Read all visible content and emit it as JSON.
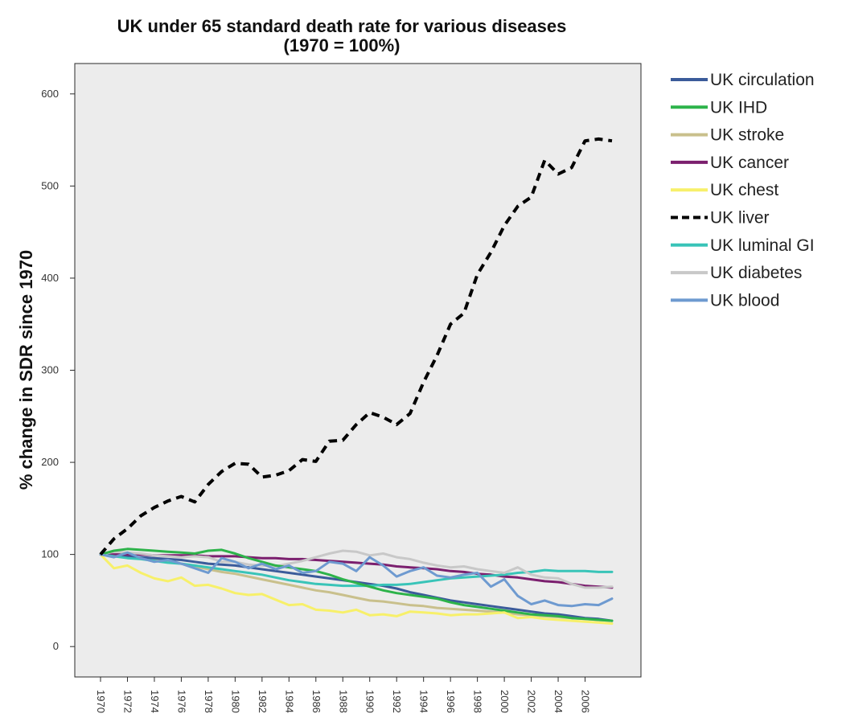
{
  "chart_data": {
    "type": "line",
    "title": "UK under 65 standard death rate for various diseases",
    "subtitle": "(1970 = 100%)",
    "xlabel": "",
    "ylabel": "% change in SDR since 1970",
    "ylim": [
      -33,
      633
    ],
    "yticks": [
      0,
      100,
      200,
      300,
      400,
      500,
      600
    ],
    "grid": false,
    "legend_position": "right",
    "x": [
      1970,
      1971,
      1972,
      1973,
      1974,
      1975,
      1976,
      1977,
      1978,
      1979,
      1980,
      1981,
      1982,
      1983,
      1984,
      1985,
      1986,
      1987,
      1988,
      1989,
      1990,
      1991,
      1992,
      1993,
      1994,
      1995,
      1996,
      1997,
      1998,
      1999,
      2000,
      2001,
      2002,
      2003,
      2004,
      2005,
      2006,
      2007,
      2008
    ],
    "xtick_labels": [
      "1970",
      "1972",
      "1974",
      "1976",
      "1978",
      "1980",
      "1982",
      "1984",
      "1986",
      "1988",
      "1990",
      "1992",
      "1994",
      "1996",
      "1998",
      "2000",
      "2002",
      "2004",
      "2006"
    ],
    "series": [
      {
        "name": "UK circulation",
        "color": "#3b5b9a",
        "dash": false,
        "values": [
          100,
          99,
          98,
          97,
          96,
          95,
          94,
          92,
          90,
          89,
          88,
          86,
          84,
          82,
          80,
          78,
          76,
          74,
          72,
          70,
          68,
          66,
          63,
          59,
          56,
          53,
          50,
          48,
          46,
          44,
          42,
          40,
          38,
          36,
          35,
          33,
          31,
          30,
          28
        ]
      },
      {
        "name": "UK IHD",
        "color": "#2db34a",
        "dash": false,
        "values": [
          100,
          104,
          106,
          105,
          104,
          103,
          102,
          101,
          104,
          105,
          101,
          96,
          92,
          88,
          86,
          84,
          82,
          78,
          73,
          69,
          65,
          61,
          58,
          56,
          54,
          52,
          48,
          45,
          43,
          41,
          39,
          37,
          35,
          34,
          33,
          31,
          30,
          29,
          28
        ]
      },
      {
        "name": "UK stroke",
        "color": "#c9c08c",
        "dash": false,
        "values": [
          100,
          98,
          97,
          96,
          94,
          92,
          90,
          87,
          84,
          81,
          79,
          76,
          73,
          70,
          67,
          64,
          61,
          59,
          56,
          53,
          50,
          49,
          47,
          45,
          44,
          42,
          41,
          40,
          39,
          38,
          37,
          35,
          34,
          33,
          32,
          31,
          30,
          29,
          28
        ]
      },
      {
        "name": "UK cancer",
        "color": "#7b1f6e",
        "dash": false,
        "values": [
          100,
          100,
          100,
          100,
          99,
          99,
          99,
          99,
          98,
          98,
          98,
          97,
          96,
          96,
          95,
          95,
          94,
          93,
          92,
          91,
          90,
          89,
          87,
          86,
          85,
          84,
          82,
          81,
          79,
          78,
          76,
          75,
          73,
          71,
          70,
          68,
          66,
          65,
          64
        ]
      },
      {
        "name": "UK chest",
        "color": "#f7f06a",
        "dash": false,
        "values": [
          100,
          85,
          88,
          80,
          74,
          71,
          75,
          66,
          67,
          63,
          58,
          56,
          57,
          51,
          45,
          46,
          40,
          39,
          37,
          40,
          34,
          35,
          33,
          38,
          37,
          36,
          34,
          35,
          35,
          36,
          37,
          31,
          32,
          30,
          29,
          28,
          27,
          26,
          25
        ]
      },
      {
        "name": "UK liver",
        "color": "#000000",
        "dash": true,
        "values": [
          100,
          117,
          128,
          142,
          151,
          158,
          163,
          157,
          176,
          190,
          199,
          198,
          184,
          186,
          191,
          203,
          201,
          223,
          224,
          241,
          254,
          249,
          241,
          253,
          287,
          316,
          350,
          362,
          404,
          428,
          457,
          478,
          488,
          528,
          513,
          520,
          549,
          551,
          549
        ]
      },
      {
        "name": "UK luminal GI",
        "color": "#39c4b8",
        "dash": false,
        "values": [
          100,
          98,
          96,
          95,
          93,
          91,
          90,
          88,
          86,
          84,
          82,
          80,
          78,
          75,
          72,
          70,
          68,
          67,
          66,
          66,
          66,
          67,
          67,
          68,
          70,
          72,
          74,
          75,
          76,
          77,
          78,
          80,
          81,
          83,
          82,
          82,
          82,
          81,
          81
        ]
      },
      {
        "name": "UK diabetes",
        "color": "#c8c8c8",
        "dash": false,
        "values": [
          100,
          103,
          102,
          101,
          99,
          98,
          97,
          98,
          97,
          92,
          92,
          89,
          88,
          87,
          90,
          93,
          97,
          101,
          104,
          103,
          99,
          101,
          97,
          95,
          91,
          88,
          86,
          87,
          84,
          82,
          80,
          86,
          78,
          75,
          74,
          68,
          64,
          64,
          65
        ]
      },
      {
        "name": "UK blood",
        "color": "#6e9ad0",
        "dash": false,
        "values": [
          100,
          97,
          102,
          96,
          92,
          94,
          90,
          85,
          80,
          96,
          92,
          85,
          90,
          84,
          88,
          80,
          82,
          92,
          90,
          82,
          97,
          88,
          76,
          82,
          86,
          77,
          75,
          78,
          80,
          65,
          73,
          55,
          46,
          50,
          45,
          44,
          46,
          45,
          52
        ]
      }
    ]
  }
}
